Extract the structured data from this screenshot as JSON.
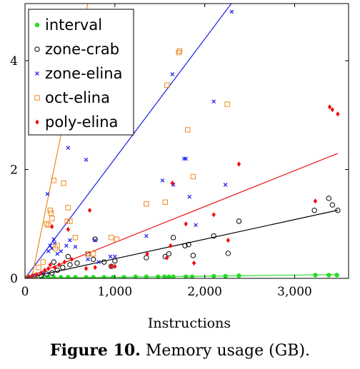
{
  "caption": {
    "label": "Figure 10.",
    "text": "Memory usage (GB)."
  },
  "chart_data": {
    "type": "scatter",
    "xlabel": "Instructions",
    "ylabel": "",
    "xlim": [
      0,
      3600
    ],
    "ylim": [
      0,
      5.05
    ],
    "xticks": [
      0,
      1000,
      2000,
      3000
    ],
    "xtick_labels": [
      "0",
      "1,000",
      "2,000",
      "3,000"
    ],
    "yticks": [
      0,
      2,
      4
    ],
    "ytick_labels": [
      "0",
      "2",
      "4"
    ],
    "grid": false,
    "legend_position": "top-left",
    "series": [
      {
        "name": "interval",
        "marker": "dot",
        "color": "#22dd22",
        "fit": {
          "slope": 2e-05,
          "intercept": 0.0
        },
        "points": [
          [
            20,
            0.01
          ],
          [
            60,
            0.01
          ],
          [
            120,
            0.01
          ],
          [
            200,
            0.01
          ],
          [
            260,
            0.02
          ],
          [
            320,
            0.02
          ],
          [
            400,
            0.02
          ],
          [
            480,
            0.02
          ],
          [
            560,
            0.02
          ],
          [
            680,
            0.02
          ],
          [
            760,
            0.02
          ],
          [
            880,
            0.02
          ],
          [
            980,
            0.02
          ],
          [
            1100,
            0.02
          ],
          [
            1230,
            0.03
          ],
          [
            1350,
            0.03
          ],
          [
            1480,
            0.03
          ],
          [
            1550,
            0.03
          ],
          [
            1600,
            0.03
          ],
          [
            1650,
            0.03
          ],
          [
            1790,
            0.03
          ],
          [
            1860,
            0.03
          ],
          [
            2100,
            0.04
          ],
          [
            2230,
            0.04
          ],
          [
            2380,
            0.05
          ],
          [
            3230,
            0.06
          ],
          [
            3380,
            0.06
          ],
          [
            3470,
            0.06
          ]
        ]
      },
      {
        "name": "zone-crab",
        "marker": "circle",
        "color": "#000000",
        "fit": {
          "slope": 0.00036,
          "intercept": 0.0
        },
        "points": [
          [
            40,
            0.01
          ],
          [
            100,
            0.03
          ],
          [
            180,
            0.05
          ],
          [
            240,
            0.08
          ],
          [
            300,
            0.1
          ],
          [
            320,
            0.3
          ],
          [
            360,
            0.15
          ],
          [
            420,
            0.2
          ],
          [
            480,
            0.4
          ],
          [
            500,
            0.25
          ],
          [
            580,
            0.28
          ],
          [
            700,
            0.45
          ],
          [
            780,
            0.72
          ],
          [
            760,
            0.35
          ],
          [
            880,
            0.3
          ],
          [
            960,
            0.22
          ],
          [
            1000,
            0.32
          ],
          [
            1350,
            0.38
          ],
          [
            1560,
            0.4
          ],
          [
            1600,
            0.45
          ],
          [
            1650,
            0.75
          ],
          [
            1780,
            0.6
          ],
          [
            1820,
            0.62
          ],
          [
            1870,
            0.42
          ],
          [
            2100,
            0.78
          ],
          [
            2260,
            0.46
          ],
          [
            2380,
            1.05
          ],
          [
            3220,
            1.25
          ],
          [
            3380,
            1.47
          ],
          [
            3420,
            1.35
          ],
          [
            3480,
            1.25
          ]
        ]
      },
      {
        "name": "zone-elina",
        "marker": "x",
        "color": "#1a1aee",
        "fit": {
          "slope": 0.0022,
          "intercept": 0.0
        },
        "points": [
          [
            60,
            0.03
          ],
          [
            120,
            0.05
          ],
          [
            200,
            0.1
          ],
          [
            250,
            1.55
          ],
          [
            260,
            0.5
          ],
          [
            280,
            0.6
          ],
          [
            300,
            0.55
          ],
          [
            320,
            0.72
          ],
          [
            330,
            0.65
          ],
          [
            360,
            0.45
          ],
          [
            400,
            0.5
          ],
          [
            460,
            0.6
          ],
          [
            480,
            2.4
          ],
          [
            500,
            0.7
          ],
          [
            560,
            0.58
          ],
          [
            680,
            2.18
          ],
          [
            700,
            0.35
          ],
          [
            780,
            0.7
          ],
          [
            820,
            0.3
          ],
          [
            950,
            0.4
          ],
          [
            1000,
            0.4
          ],
          [
            1350,
            0.78
          ],
          [
            1530,
            1.8
          ],
          [
            1640,
            3.75
          ],
          [
            1650,
            1.72
          ],
          [
            1770,
            2.2
          ],
          [
            1790,
            2.2
          ],
          [
            1830,
            1.5
          ],
          [
            1900,
            0.98
          ],
          [
            2100,
            3.25
          ],
          [
            2230,
            1.72
          ],
          [
            2300,
            4.9
          ]
        ]
      },
      {
        "name": "oct-elina",
        "marker": "square",
        "color": "#ee8822",
        "fit": {
          "slope": 0.0081,
          "intercept": -0.6
        },
        "points": [
          [
            40,
            0.02
          ],
          [
            100,
            0.05
          ],
          [
            150,
            0.2
          ],
          [
            200,
            0.3
          ],
          [
            240,
            1.0
          ],
          [
            260,
            0.98
          ],
          [
            280,
            1.25
          ],
          [
            290,
            1.2
          ],
          [
            300,
            1.1
          ],
          [
            320,
            1.8
          ],
          [
            340,
            0.55
          ],
          [
            360,
            0.6
          ],
          [
            430,
            1.75
          ],
          [
            470,
            1.05
          ],
          [
            480,
            1.3
          ],
          [
            500,
            1.05
          ],
          [
            560,
            0.75
          ],
          [
            700,
            0.45
          ],
          [
            760,
            0.45
          ],
          [
            960,
            0.75
          ],
          [
            1020,
            0.72
          ],
          [
            1350,
            1.37
          ],
          [
            1560,
            1.4
          ],
          [
            1580,
            3.55
          ],
          [
            1710,
            4.15
          ],
          [
            1720,
            4.18
          ],
          [
            1810,
            2.73
          ],
          [
            1870,
            1.87
          ],
          [
            2250,
            3.2
          ]
        ]
      },
      {
        "name": "poly-elina",
        "marker": "diamond",
        "color": "#ee1111",
        "fit": {
          "slope": 0.00066,
          "intercept": 0.0
        },
        "points": [
          [
            30,
            0.02
          ],
          [
            80,
            0.04
          ],
          [
            130,
            0.07
          ],
          [
            180,
            0.1
          ],
          [
            220,
            0.15
          ],
          [
            260,
            0.18
          ],
          [
            280,
            0.25
          ],
          [
            300,
            0.95
          ],
          [
            330,
            0.2
          ],
          [
            380,
            0.25
          ],
          [
            440,
            0.3
          ],
          [
            480,
            0.9
          ],
          [
            520,
            0.35
          ],
          [
            680,
            0.18
          ],
          [
            720,
            1.25
          ],
          [
            780,
            0.2
          ],
          [
            960,
            0.22
          ],
          [
            1000,
            0.22
          ],
          [
            1360,
            0.45
          ],
          [
            1580,
            0.38
          ],
          [
            1620,
            0.6
          ],
          [
            1640,
            1.75
          ],
          [
            1790,
            1.0
          ],
          [
            1880,
            0.28
          ],
          [
            2100,
            1.17
          ],
          [
            2260,
            0.7
          ],
          [
            2380,
            2.1
          ],
          [
            3230,
            1.42
          ],
          [
            3390,
            3.15
          ],
          [
            3420,
            3.1
          ],
          [
            3480,
            3.02
          ]
        ]
      }
    ]
  }
}
